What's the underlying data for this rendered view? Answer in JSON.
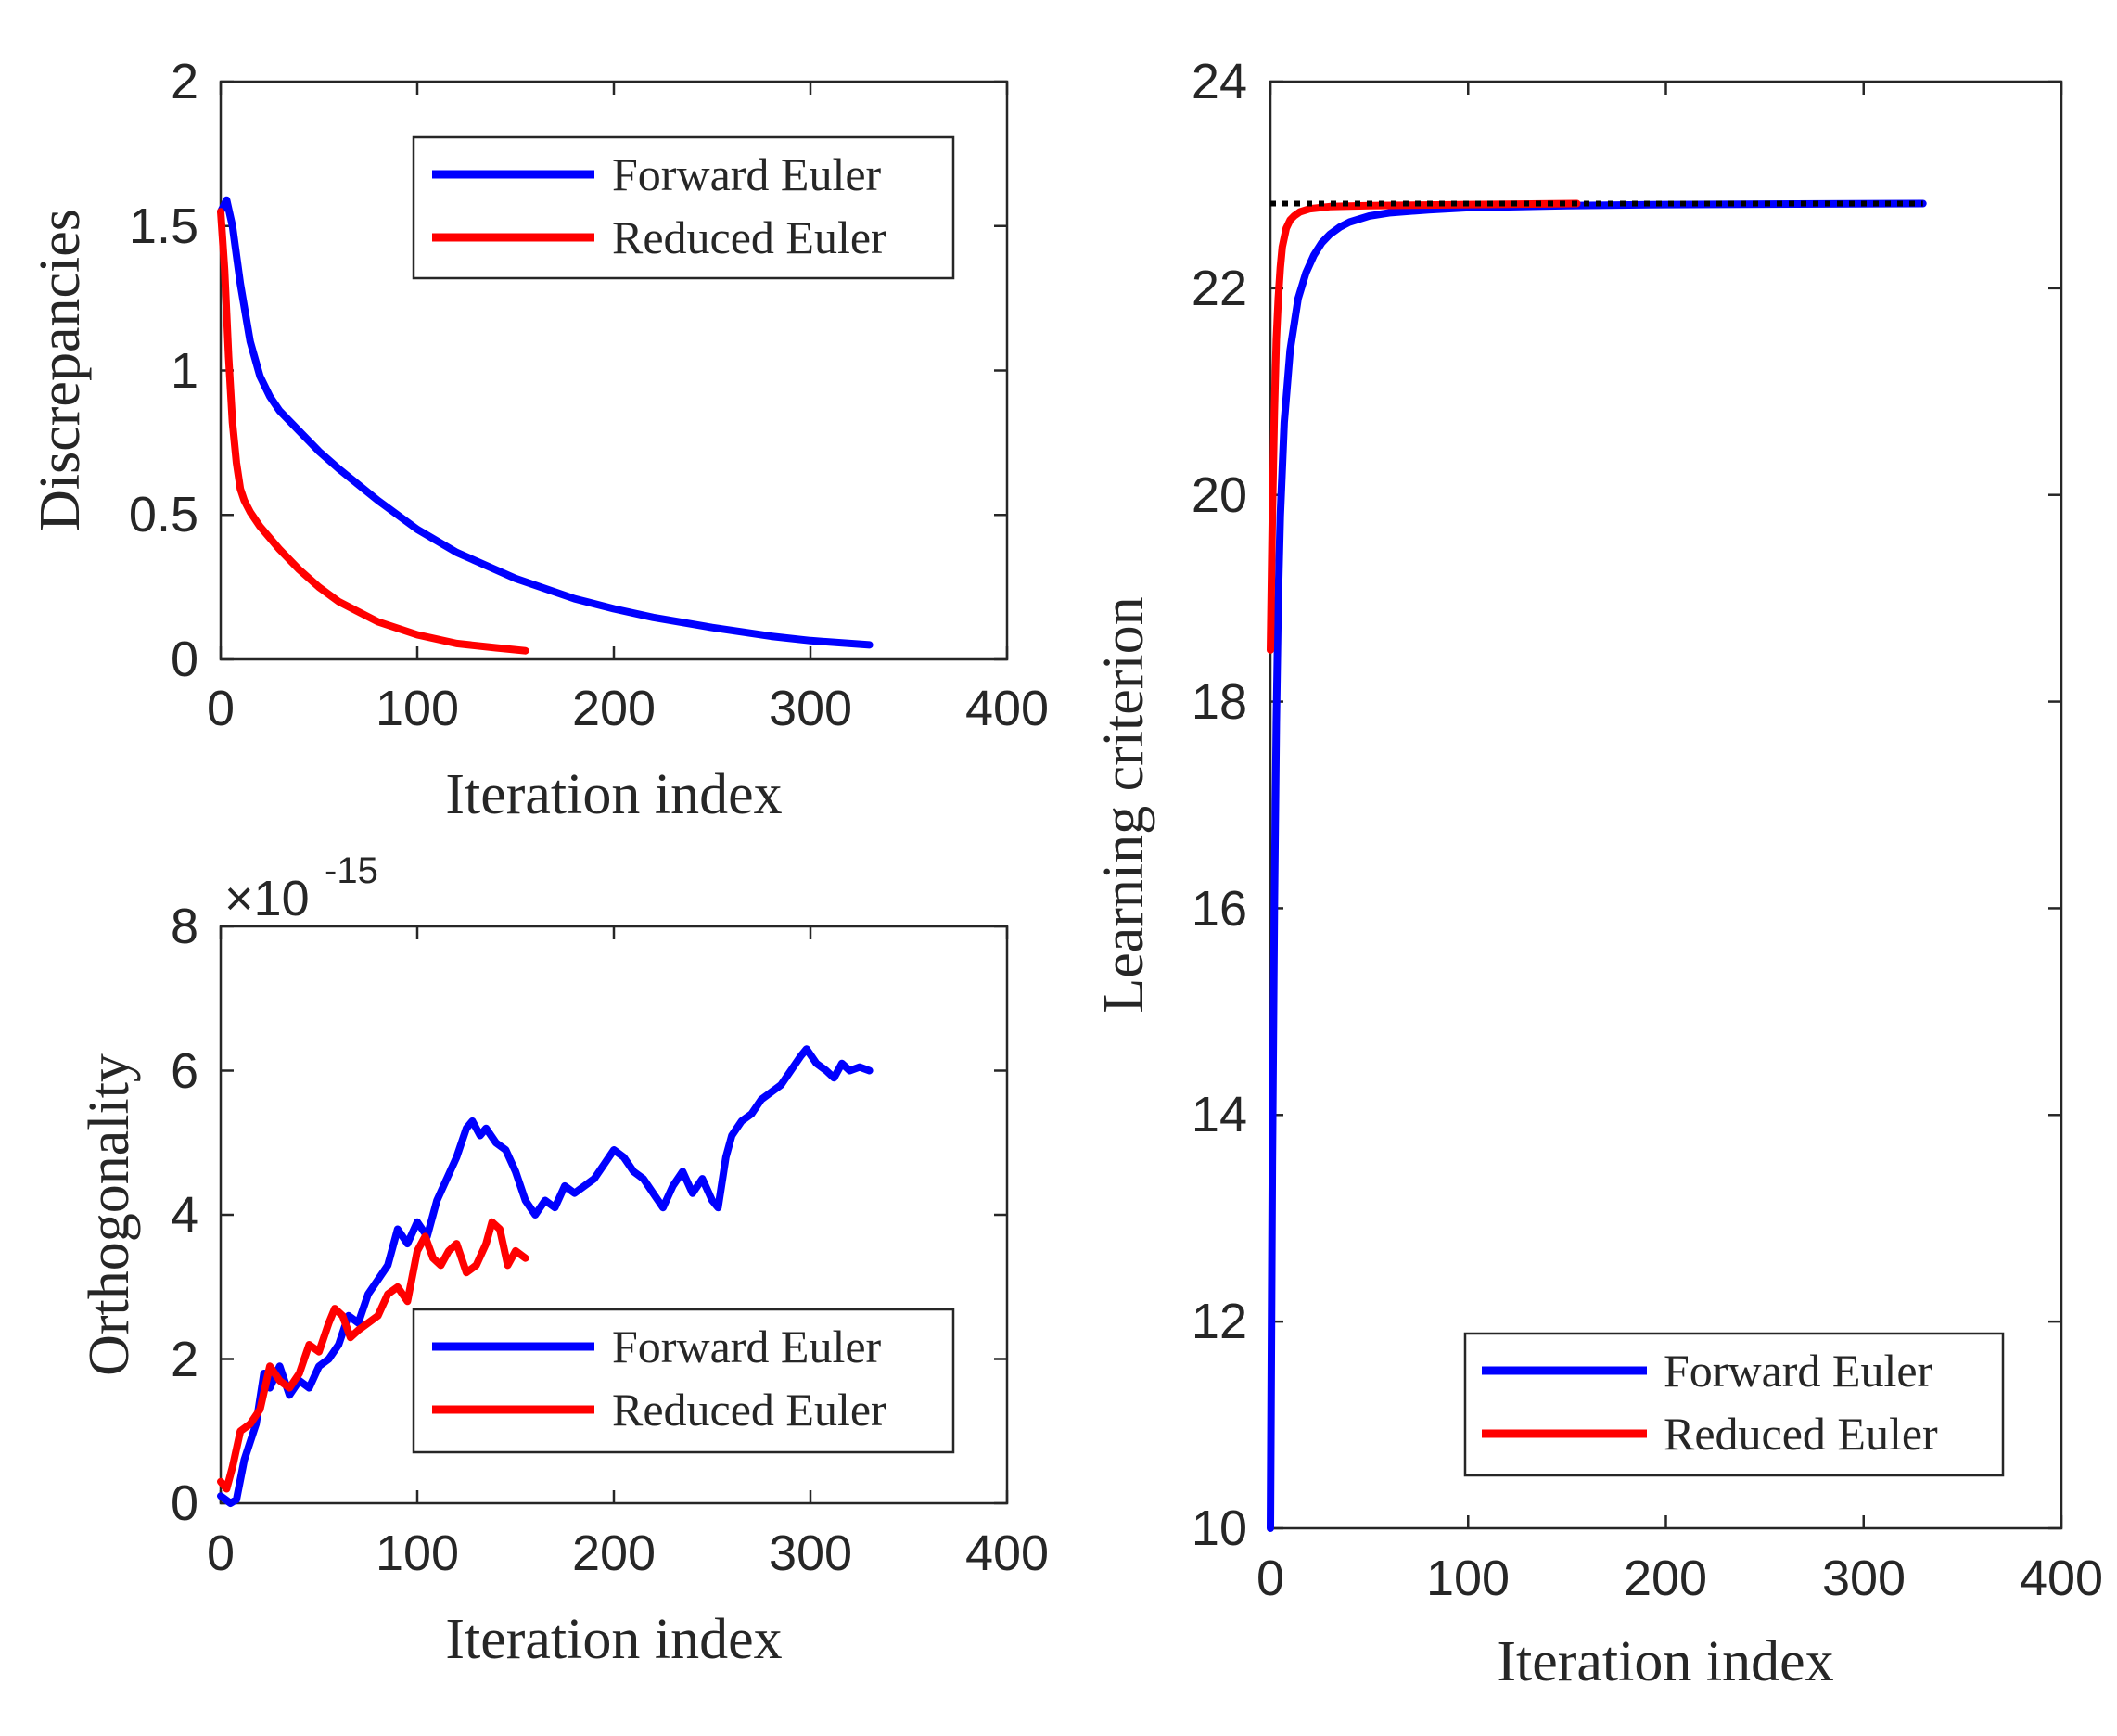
{
  "chart_data": [
    {
      "type": "line",
      "id": "discrepancies",
      "xlabel": "Iteration index",
      "ylabel": "Discrepancies",
      "xlim": [
        0,
        400
      ],
      "ylim": [
        0,
        2
      ],
      "xticks": [
        "0",
        "100",
        "200",
        "300",
        "400"
      ],
      "yticks": [
        "0",
        "0.5",
        "1",
        "1.5",
        "2"
      ],
      "legend": {
        "placement": "top-right",
        "entries": [
          "Forward Euler",
          "Reduced Euler"
        ]
      },
      "series": [
        {
          "name": "Forward Euler",
          "color": "#0000ff",
          "x": [
            0,
            3,
            6,
            10,
            15,
            20,
            25,
            30,
            40,
            50,
            60,
            80,
            100,
            120,
            150,
            180,
            200,
            220,
            250,
            280,
            300,
            330
          ],
          "y": [
            1.55,
            1.59,
            1.5,
            1.3,
            1.1,
            0.98,
            0.91,
            0.86,
            0.79,
            0.72,
            0.66,
            0.55,
            0.45,
            0.37,
            0.28,
            0.21,
            0.175,
            0.145,
            0.11,
            0.08,
            0.065,
            0.05
          ]
        },
        {
          "name": "Reduced Euler",
          "color": "#ff0000",
          "x": [
            0,
            2,
            4,
            6,
            8,
            10,
            12,
            15,
            20,
            30,
            40,
            50,
            60,
            80,
            100,
            120,
            140,
            155
          ],
          "y": [
            1.55,
            1.35,
            1.05,
            0.82,
            0.68,
            0.59,
            0.55,
            0.51,
            0.46,
            0.38,
            0.31,
            0.25,
            0.2,
            0.13,
            0.085,
            0.055,
            0.04,
            0.03
          ]
        }
      ]
    },
    {
      "type": "line",
      "id": "orthogonality",
      "xlabel": "Iteration index",
      "ylabel": "Orthogonality",
      "exponent_base": "×10",
      "exponent": "-15",
      "xlim": [
        0,
        400
      ],
      "ylim": [
        0,
        8
      ],
      "xticks": [
        "0",
        "100",
        "200",
        "300",
        "400"
      ],
      "yticks": [
        "0",
        "2",
        "4",
        "6",
        "8"
      ],
      "legend": {
        "placement": "bottom-right",
        "entries": [
          "Forward Euler",
          "Reduced Euler"
        ]
      },
      "series": [
        {
          "name": "Forward Euler",
          "color": "#0000ff",
          "x": [
            0,
            5,
            8,
            12,
            18,
            22,
            25,
            30,
            35,
            40,
            45,
            50,
            55,
            60,
            65,
            70,
            75,
            80,
            85,
            90,
            95,
            100,
            105,
            110,
            115,
            120,
            125,
            128,
            132,
            135,
            140,
            145,
            150,
            155,
            160,
            165,
            170,
            175,
            180,
            190,
            195,
            200,
            205,
            210,
            215,
            220,
            225,
            230,
            235,
            240,
            245,
            250,
            253,
            257,
            260,
            265,
            270,
            275,
            280,
            285,
            290,
            295,
            298,
            303,
            308,
            312,
            316,
            320,
            325,
            330
          ],
          "y": [
            0.1,
            0.0,
            0.05,
            0.6,
            1.1,
            1.8,
            1.6,
            1.9,
            1.5,
            1.7,
            1.6,
            1.9,
            2.0,
            2.2,
            2.6,
            2.5,
            2.9,
            3.1,
            3.3,
            3.8,
            3.6,
            3.9,
            3.7,
            4.2,
            4.5,
            4.8,
            5.2,
            5.3,
            5.1,
            5.2,
            5.0,
            4.9,
            4.6,
            4.2,
            4.0,
            4.2,
            4.1,
            4.4,
            4.3,
            4.5,
            4.7,
            4.9,
            4.8,
            4.6,
            4.5,
            4.3,
            4.1,
            4.4,
            4.6,
            4.3,
            4.5,
            4.2,
            4.1,
            4.8,
            5.1,
            5.3,
            5.4,
            5.6,
            5.7,
            5.8,
            6.0,
            6.2,
            6.3,
            6.1,
            6.0,
            5.9,
            6.1,
            6.0,
            6.05,
            6.0
          ]
        },
        {
          "name": "Reduced Euler",
          "color": "#ff0000",
          "x": [
            0,
            3,
            6,
            10,
            15,
            20,
            25,
            30,
            35,
            40,
            45,
            50,
            55,
            58,
            62,
            66,
            70,
            75,
            80,
            85,
            90,
            95,
            100,
            104,
            108,
            112,
            116,
            120,
            125,
            130,
            135,
            138,
            142,
            146,
            150,
            155
          ],
          "y": [
            0.3,
            0.2,
            0.5,
            1.0,
            1.1,
            1.3,
            1.9,
            1.7,
            1.6,
            1.8,
            2.2,
            2.1,
            2.5,
            2.7,
            2.6,
            2.3,
            2.4,
            2.5,
            2.6,
            2.9,
            3.0,
            2.8,
            3.5,
            3.7,
            3.4,
            3.3,
            3.5,
            3.6,
            3.2,
            3.3,
            3.6,
            3.9,
            3.8,
            3.3,
            3.5,
            3.4
          ]
        }
      ]
    },
    {
      "type": "line",
      "id": "learning-criterion",
      "xlabel": "Iteration index",
      "ylabel": "Learning criterion",
      "xlim": [
        0,
        400
      ],
      "ylim": [
        10,
        24
      ],
      "xticks": [
        "0",
        "100",
        "200",
        "300",
        "400"
      ],
      "yticks": [
        "10",
        "12",
        "14",
        "16",
        "18",
        "20",
        "22",
        "24"
      ],
      "legend": {
        "placement": "bottom-right",
        "entries": [
          "Forward Euler",
          "Reduced Euler"
        ]
      },
      "reference_line": {
        "y": 22.82,
        "x": [
          0,
          330
        ],
        "color": "#000000",
        "style": "dotted"
      },
      "series": [
        {
          "name": "Forward Euler",
          "color": "#0000ff",
          "x": [
            0,
            1,
            2,
            3,
            4,
            5,
            7,
            10,
            14,
            18,
            22,
            26,
            30,
            35,
            40,
            50,
            60,
            80,
            100,
            150,
            200,
            330
          ],
          "y": [
            10.0,
            13.5,
            16.0,
            17.8,
            19.0,
            19.8,
            20.7,
            21.4,
            21.9,
            22.15,
            22.32,
            22.44,
            22.52,
            22.59,
            22.64,
            22.7,
            22.73,
            22.76,
            22.78,
            22.8,
            22.81,
            22.82
          ]
        },
        {
          "name": "Reduced Euler",
          "color": "#ff0000",
          "x": [
            0,
            1,
            2,
            3,
            4,
            5,
            6,
            8,
            10,
            12,
            15,
            20,
            30,
            50,
            100,
            155
          ],
          "y": [
            18.5,
            19.8,
            20.8,
            21.5,
            21.9,
            22.2,
            22.4,
            22.58,
            22.66,
            22.7,
            22.74,
            22.77,
            22.79,
            22.8,
            22.81,
            22.82
          ]
        }
      ]
    }
  ]
}
